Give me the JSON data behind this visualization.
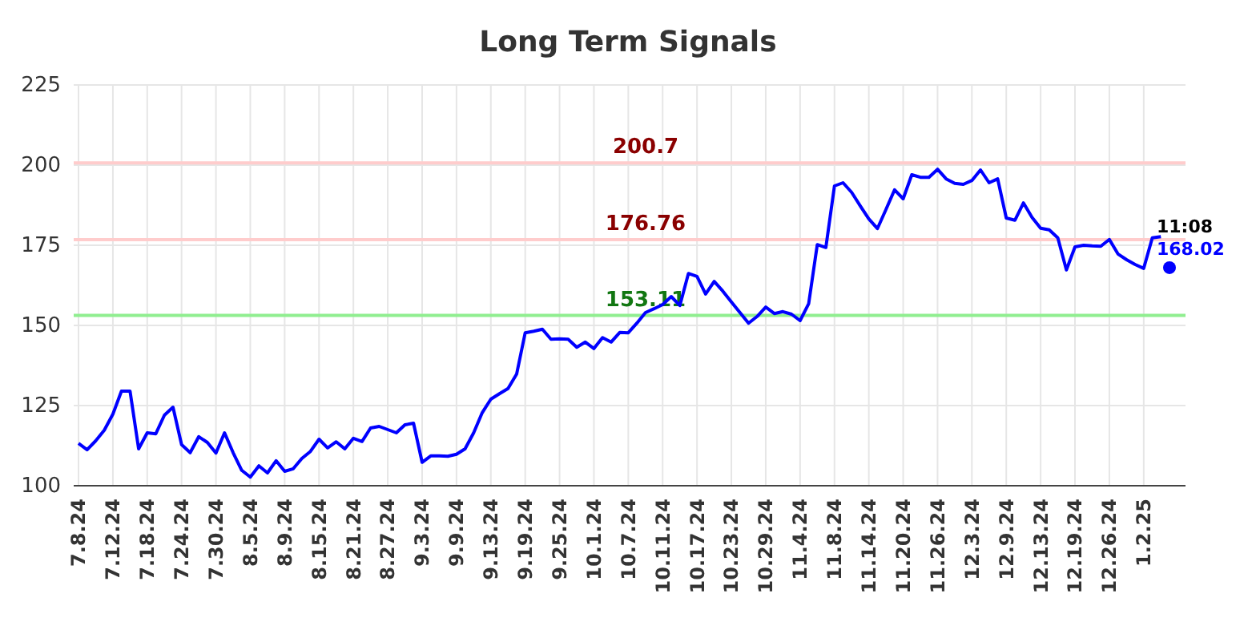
{
  "chart_data": {
    "type": "line",
    "title": "Long Term Signals",
    "categories": [
      "7.8.24",
      null,
      null,
      null,
      "7.12.24",
      null,
      null,
      null,
      "7.18.24",
      null,
      null,
      null,
      "7.24.24",
      null,
      null,
      null,
      "7.30.24",
      null,
      null,
      null,
      "8.5.24",
      null,
      null,
      null,
      "8.9.24",
      null,
      null,
      null,
      "8.15.24",
      null,
      null,
      null,
      "8.21.24",
      null,
      null,
      null,
      "8.27.24",
      null,
      null,
      null,
      "9.3.24",
      null,
      null,
      null,
      "9.9.24",
      null,
      null,
      null,
      "9.13.24",
      null,
      null,
      null,
      "9.19.24",
      null,
      null,
      null,
      "9.25.24",
      null,
      null,
      null,
      "10.1.24",
      null,
      null,
      null,
      "10.7.24",
      null,
      null,
      null,
      "10.11.24",
      null,
      null,
      null,
      "10.17.24",
      null,
      null,
      null,
      "10.23.24",
      null,
      null,
      null,
      "10.29.24",
      null,
      null,
      null,
      "11.4.24",
      null,
      null,
      null,
      "11.8.24",
      null,
      null,
      null,
      "11.14.24",
      null,
      null,
      null,
      "11.20.24",
      null,
      null,
      null,
      "11.26.24",
      null,
      null,
      null,
      "12.3.24",
      null,
      null,
      null,
      "12.9.24",
      null,
      null,
      null,
      "12.13.24",
      null,
      null,
      null,
      "12.19.24",
      null,
      null,
      null,
      "12.26.24",
      null,
      null,
      null,
      "1.2.25",
      null,
      null,
      null
    ],
    "series": [
      {
        "color": "#0000ff",
        "values": [
          113.2,
          111.2,
          114,
          117.3,
          122.3,
          129.5,
          129.5,
          111.5,
          116.5,
          116.2,
          122,
          124.5,
          112.8,
          110.3,
          115.3,
          113.5,
          110.2,
          116.5,
          110.3,
          104.8,
          102.7,
          106.2,
          104,
          107.8,
          104.5,
          105.3,
          108.5,
          110.7,
          114.5,
          111.8,
          113.7,
          111.5,
          114.8,
          113.8,
          118,
          118.5,
          117.5,
          116.5,
          119,
          119.5,
          107.3,
          109.3,
          109.3,
          109.2,
          109.8,
          111.5,
          116.5,
          122.8,
          127,
          128.7,
          130.3,
          134.8,
          147.7,
          148.2,
          148.8,
          145.7,
          145.8,
          145.7,
          143.2,
          144.8,
          142.8,
          146.2,
          144.8,
          147.8,
          147.7,
          150.7,
          154,
          155.2,
          156.5,
          159,
          156.2,
          166.2,
          165.3,
          159.8,
          163.7,
          160.7,
          157.3,
          154,
          150.7,
          152.8,
          155.7,
          153.7,
          154.3,
          153.5,
          151.5,
          156.8,
          175.2,
          174.3,
          193.5,
          194.5,
          191.5,
          187.3,
          183.2,
          180.2,
          186.2,
          192.3,
          189.5,
          197,
          196.2,
          196.2,
          198.7,
          195.7,
          194.3,
          194,
          195.2,
          198.5,
          194.5,
          195.7,
          183.5,
          182.8,
          188.2,
          183.7,
          180.3,
          179.8,
          177.3,
          167.3,
          174.5,
          175,
          174.8,
          174.7,
          176.8,
          172.3,
          170.5,
          169,
          167.8,
          177.3,
          177.7,
          null
        ]
      },
      {
        "type": "scatter",
        "color": "#0000ff",
        "marker": "circle",
        "values": [
          null,
          null,
          null,
          null,
          null,
          null,
          null,
          null,
          null,
          null,
          null,
          null,
          null,
          null,
          null,
          null,
          null,
          null,
          null,
          null,
          null,
          null,
          null,
          null,
          null,
          null,
          null,
          null,
          null,
          null,
          null,
          null,
          null,
          null,
          null,
          null,
          null,
          null,
          null,
          null,
          null,
          null,
          null,
          null,
          null,
          null,
          null,
          null,
          null,
          null,
          null,
          null,
          null,
          null,
          null,
          null,
          null,
          null,
          null,
          null,
          null,
          null,
          null,
          null,
          null,
          null,
          null,
          null,
          null,
          null,
          null,
          null,
          null,
          null,
          null,
          null,
          null,
          null,
          null,
          null,
          null,
          null,
          null,
          null,
          null,
          null,
          null,
          null,
          null,
          null,
          null,
          null,
          null,
          null,
          null,
          null,
          null,
          null,
          null,
          null,
          null,
          null,
          null,
          null,
          null,
          null,
          null,
          null,
          null,
          null,
          null,
          null,
          null,
          null,
          null,
          null,
          null,
          null,
          null,
          null,
          null,
          null,
          null,
          null,
          null,
          null,
          null,
          168.02
        ],
        "value_labels": [
          null,
          null,
          null,
          null,
          null,
          null,
          null,
          null,
          null,
          null,
          null,
          null,
          null,
          null,
          null,
          null,
          null,
          null,
          null,
          null,
          null,
          null,
          null,
          null,
          null,
          null,
          null,
          null,
          null,
          null,
          null,
          null,
          null,
          null,
          null,
          null,
          null,
          null,
          null,
          null,
          null,
          null,
          null,
          null,
          null,
          null,
          null,
          null,
          null,
          null,
          null,
          null,
          null,
          null,
          null,
          null,
          null,
          null,
          null,
          null,
          null,
          null,
          null,
          null,
          null,
          null,
          null,
          null,
          null,
          null,
          null,
          null,
          null,
          null,
          null,
          null,
          null,
          null,
          null,
          null,
          null,
          null,
          null,
          null,
          null,
          null,
          null,
          null,
          null,
          null,
          null,
          null,
          null,
          null,
          null,
          null,
          null,
          null,
          null,
          null,
          null,
          null,
          null,
          null,
          null,
          null,
          null,
          null,
          null,
          null,
          null,
          null,
          null,
          null,
          null,
          null,
          null,
          null,
          null,
          null,
          null,
          null,
          null,
          null,
          null,
          null,
          null,
          "168.02"
        ]
      }
    ],
    "ylim": [
      100,
      225
    ],
    "yticks": [
      100,
      125,
      150,
      175,
      200,
      225
    ],
    "grid": true,
    "line_style": "solid",
    "ref_lines": [
      {
        "axis": "y",
        "value": 200.7,
        "label": "200.7",
        "color": "#ffcccc"
      },
      {
        "axis": "y",
        "value": 176.76,
        "label": "176.76",
        "color": "#ffcccc"
      },
      {
        "axis": "y",
        "value": 153.11,
        "label": "153.11",
        "color": "#90ee90"
      }
    ],
    "annotations": [
      "11:08"
    ]
  }
}
